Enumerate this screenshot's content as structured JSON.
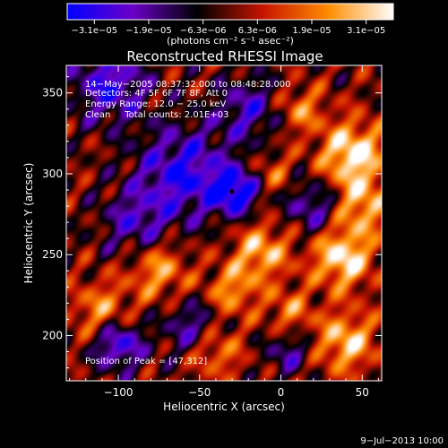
{
  "chart_data": {
    "type": "heatmap",
    "title": "Reconstructed RHESSI Image",
    "xlabel": "Heliocentric X (arcsec)",
    "ylabel": "Heliocentric Y (arcsec)",
    "xlim": [
      -132,
      62
    ],
    "ylim": [
      172,
      367
    ],
    "xticks": [
      -100,
      -50,
      0,
      50
    ],
    "xtick_labels": [
      "−100",
      "−50",
      "0",
      "50"
    ],
    "yticks": [
      200,
      250,
      300,
      350
    ],
    "ytick_labels": [
      "200",
      "250",
      "300",
      "350"
    ],
    "colorbar": {
      "tick_labels": [
        "−3.1e−05",
        "−1.9e−05",
        "−6.3e−06",
        "6.3e−06",
        "1.9e−05",
        "3.1e−05"
      ],
      "tick_values": [
        -3.1e-05,
        -1.9e-05,
        -6.3e-06,
        6.3e-06,
        1.9e-05,
        3.1e-05
      ],
      "unit_label": "(photons cm⁻² s⁻¹ asec⁻²)",
      "colors": [
        "#0000ff",
        "#6a00c8",
        "#000000",
        "#c81400",
        "#ff8c00",
        "#ffffff"
      ]
    },
    "annotations": [
      "14−May−2005 08:37:32.000 to 08:48:28.000",
      "Detectors: 4F 5F 6F 7F 8F, Att 0",
      "Energy Range: 12.0 − 25.0 keV",
      "Clean     Total counts: 2.01E+03"
    ],
    "peak_label": "Position of Peak = [47,312]",
    "peak_marker": [
      -30,
      289
    ],
    "sources": [
      {
        "x": 44,
        "y": 312,
        "amp": 1.0,
        "w": 14
      },
      {
        "x": 38,
        "y": 248,
        "amp": 0.95,
        "w": 13
      },
      {
        "x": 50,
        "y": 280,
        "amp": 0.7,
        "w": 12
      },
      {
        "x": -12,
        "y": 252,
        "amp": 0.75,
        "w": 12
      },
      {
        "x": -30,
        "y": 228,
        "amp": 0.6,
        "w": 11
      },
      {
        "x": -75,
        "y": 240,
        "amp": 0.65,
        "w": 12
      },
      {
        "x": -110,
        "y": 215,
        "amp": 0.6,
        "w": 13
      },
      {
        "x": 12,
        "y": 340,
        "amp": 0.55,
        "w": 10
      },
      {
        "x": 40,
        "y": 196,
        "amp": 0.8,
        "w": 13
      },
      {
        "x": -40,
        "y": 190,
        "amp": 0.55,
        "w": 11
      },
      {
        "x": 5,
        "y": 215,
        "amp": 0.5,
        "w": 10
      },
      {
        "x": -5,
        "y": 300,
        "amp": 0.4,
        "w": 9
      },
      {
        "x": -105,
        "y": 355,
        "amp": -0.8,
        "w": 16
      },
      {
        "x": -60,
        "y": 300,
        "amp": -0.85,
        "w": 20
      },
      {
        "x": -28,
        "y": 289,
        "amp": -1.0,
        "w": 10
      },
      {
        "x": -90,
        "y": 270,
        "amp": -0.55,
        "w": 14
      },
      {
        "x": -100,
        "y": 195,
        "amp": -0.9,
        "w": 11
      },
      {
        "x": -55,
        "y": 205,
        "amp": -0.55,
        "w": 12
      },
      {
        "x": 20,
        "y": 280,
        "amp": -0.6,
        "w": 12
      },
      {
        "x": 5,
        "y": 190,
        "amp": -0.5,
        "w": 10
      },
      {
        "x": -20,
        "y": 340,
        "amp": -0.6,
        "w": 14
      }
    ]
  },
  "footer": {
    "date": "9−Jul−2013 10:00"
  }
}
